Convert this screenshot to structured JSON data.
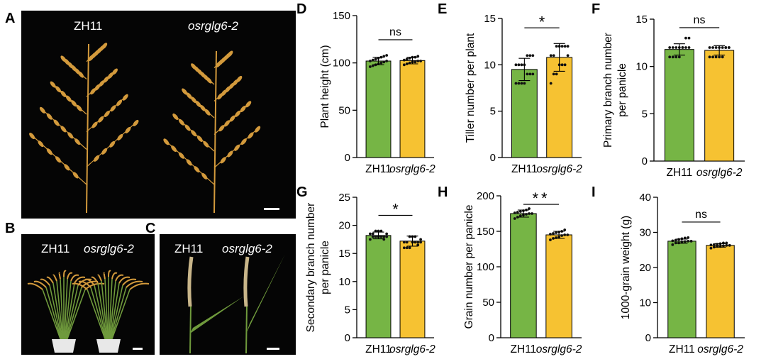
{
  "panels": {
    "A": {
      "label": "A",
      "left_label": "ZH11",
      "right_label": "osrglg6-2"
    },
    "B": {
      "label": "B",
      "left_label": "ZH11",
      "right_label": "osrglg6-2"
    },
    "C": {
      "label": "C",
      "left_label": "ZH11",
      "right_label": "osrglg6-2"
    }
  },
  "colors": {
    "wt": "#76b545",
    "mut": "#f6c232",
    "photo_bg": "#050505",
    "grain": "#d39a3c",
    "plant": "#6f9a3c",
    "pot": "#e8e8e8",
    "scalebar": "#ffffff"
  },
  "chart_data": [
    {
      "id": "D",
      "type": "bar",
      "categories": [
        "ZH11",
        "osrglg6-2"
      ],
      "values": [
        102,
        102.5
      ],
      "errors": [
        4,
        3.5
      ],
      "ylabel": "Plant height (cm)",
      "ylim": [
        0,
        150
      ],
      "yticks": [
        0,
        50,
        100,
        150
      ],
      "significance": "ns",
      "points": [
        [
          96,
          97,
          98,
          99,
          100,
          101,
          102,
          102,
          103,
          104,
          105,
          106,
          107,
          108
        ],
        [
          98,
          99,
          100,
          101,
          101,
          102,
          102,
          103,
          104,
          105,
          106,
          106,
          107
        ]
      ]
    },
    {
      "id": "E",
      "type": "bar",
      "categories": [
        "ZH11",
        "osrglg6-2"
      ],
      "values": [
        9.5,
        10.8
      ],
      "errors": [
        1.2,
        1.5
      ],
      "ylabel": "Tiller number per plant",
      "ylim": [
        0,
        15
      ],
      "yticks": [
        0,
        5,
        10,
        15
      ],
      "significance": "*",
      "points": [
        [
          8,
          8,
          8,
          8,
          9,
          9,
          9,
          10,
          10,
          10,
          10,
          11,
          11,
          11
        ],
        [
          8,
          9,
          9,
          10,
          10,
          10,
          11,
          11,
          11,
          12,
          12,
          12,
          12,
          12
        ]
      ]
    },
    {
      "id": "F",
      "type": "bar",
      "categories": [
        "ZH11",
        "osrglg6-2"
      ],
      "values": [
        11.8,
        11.7
      ],
      "errors": [
        0.6,
        0.5
      ],
      "ylabel": "Primary branch number per panicle",
      "ylim": [
        0,
        15
      ],
      "yticks": [
        0,
        5,
        10,
        15
      ],
      "significance": "ns",
      "points": [
        [
          11,
          11,
          11,
          11,
          12,
          12,
          12,
          12,
          12,
          12,
          12,
          12,
          13,
          13
        ],
        [
          11,
          11,
          11,
          11,
          11,
          12,
          12,
          12,
          12,
          12,
          12,
          12,
          12,
          12
        ]
      ]
    },
    {
      "id": "G",
      "type": "bar",
      "categories": [
        "ZH11",
        "osrglg6-2"
      ],
      "values": [
        18.2,
        17.2
      ],
      "errors": [
        0.6,
        0.9
      ],
      "ylabel": "Secondary branch number per panicle",
      "ylim": [
        0,
        25
      ],
      "yticks": [
        0,
        5,
        10,
        15,
        20,
        25
      ],
      "significance": "*",
      "points": [
        [
          17.5,
          18,
          18,
          18,
          18,
          18,
          18.5,
          18.5,
          18.5,
          19,
          19,
          19,
          17.5,
          18
        ],
        [
          16,
          16,
          16,
          17,
          17,
          17,
          17,
          17,
          17,
          18,
          18,
          18,
          16.5,
          17.5
        ]
      ]
    },
    {
      "id": "H",
      "type": "bar",
      "categories": [
        "ZH11",
        "osrglg6-2"
      ],
      "values": [
        175,
        145
      ],
      "errors": [
        5,
        5
      ],
      "ylabel": "Grain number per panicle",
      "ylim": [
        0,
        200
      ],
      "yticks": [
        0,
        50,
        100,
        150,
        200
      ],
      "significance": "**",
      "points": [
        [
          168,
          170,
          172,
          173,
          174,
          175,
          175,
          176,
          177,
          178,
          179,
          180,
          182
        ],
        [
          138,
          140,
          141,
          142,
          144,
          145,
          145,
          146,
          147,
          148,
          149,
          150,
          152
        ]
      ]
    },
    {
      "id": "I",
      "type": "bar",
      "categories": [
        "ZH11",
        "osrglg6-2"
      ],
      "values": [
        27.5,
        26.3
      ],
      "errors": [
        0.6,
        0.5
      ],
      "ylabel": "1000-grain weight (g)",
      "ylim": [
        0,
        40
      ],
      "yticks": [
        0,
        10,
        20,
        30,
        40
      ],
      "significance": "ns",
      "points": [
        [
          26.5,
          27,
          27,
          27.2,
          27.4,
          27.5,
          27.5,
          27.6,
          27.8,
          28,
          28.2,
          28.4,
          28.5
        ],
        [
          25.5,
          25.8,
          26,
          26,
          26.2,
          26.3,
          26.3,
          26.4,
          26.5,
          26.6,
          26.8,
          27,
          27
        ]
      ]
    }
  ]
}
